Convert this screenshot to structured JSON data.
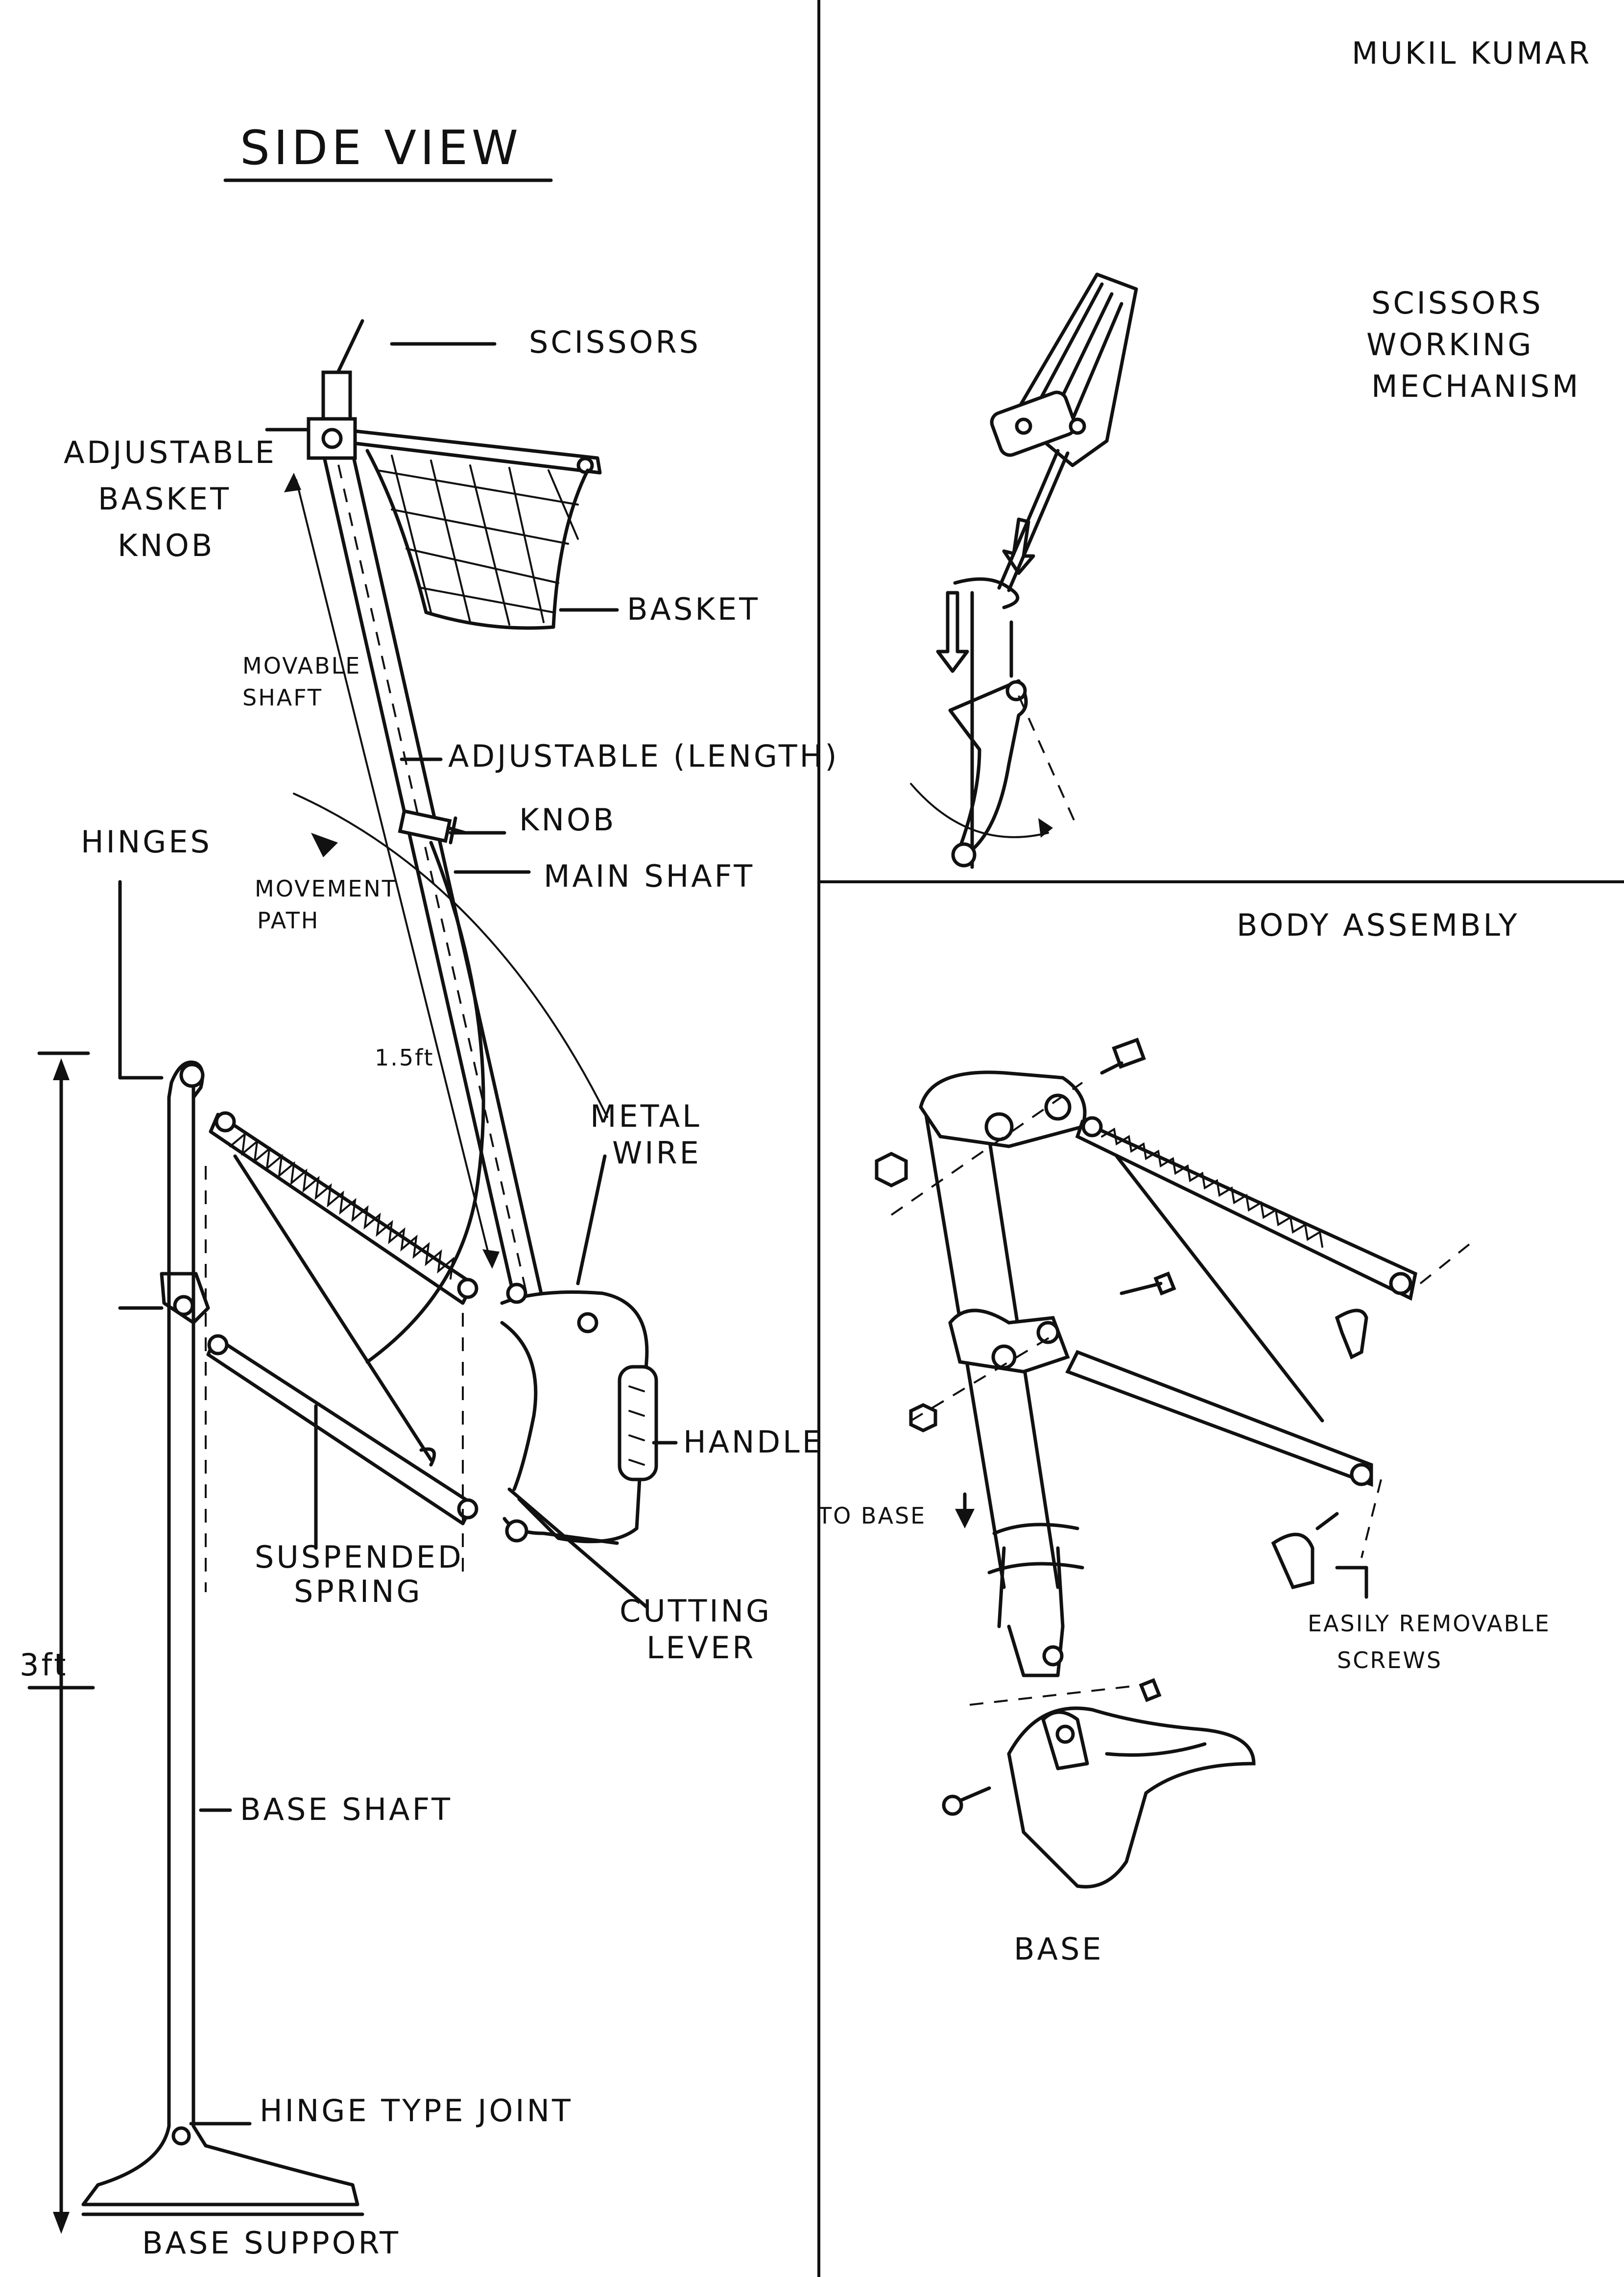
{
  "author": "MUKIL KUMAR",
  "side_view": {
    "title": "SIDE VIEW",
    "labels": {
      "scissors": "SCISSORS",
      "adjustable_basket_knob": [
        "ADJUSTABLE",
        "BASKET",
        "KNOB"
      ],
      "basket": "BASKET",
      "movable_shaft": [
        "MOVABLE",
        "SHAFT"
      ],
      "adjustable_length": "ADJUSTABLE (LENGTH)",
      "knob": "KNOB",
      "main_shaft": "MAIN SHAFT",
      "hinges": "HINGES",
      "movement_path": [
        "MOVEMENT",
        "PATH"
      ],
      "shaft_length": "1.5ft",
      "metal_wire": [
        "METAL",
        "WIRE"
      ],
      "handle": "HANDLE",
      "suspended_spring": [
        "SUSPENDED",
        "SPRING"
      ],
      "cutting_lever": [
        "CUTTING",
        "LEVER"
      ],
      "height": "3ft",
      "base_shaft": "BASE SHAFT",
      "hinge_type_joint": "HINGE TYPE JOINT",
      "base_support": "BASE SUPPORT"
    }
  },
  "scissors_mechanism": {
    "title": [
      "SCISSORS",
      "WORKING",
      "MECHANISM"
    ]
  },
  "body_assembly": {
    "title": "BODY ASSEMBLY",
    "labels": {
      "to_base": "TO BASE",
      "easily_removable_screws": [
        "EASILY REMOVABLE",
        "SCREWS"
      ],
      "base": "BASE"
    }
  }
}
